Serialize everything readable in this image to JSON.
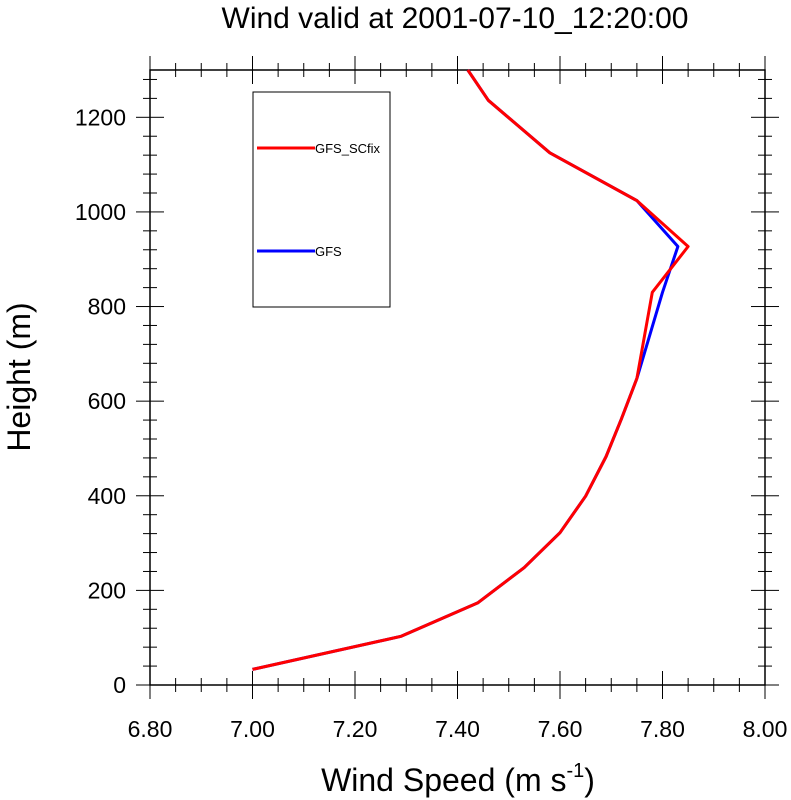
{
  "chart_data": {
    "type": "line",
    "title": "Wind valid at 2001-07-10_12:20:00",
    "xlabel": "Wind Speed (m s",
    "xlabel_sup": "-1",
    "xlabel_close": ")",
    "ylabel": "Height (m)",
    "xlim": [
      6.8,
      8.0
    ],
    "ylim": [
      0,
      1300
    ],
    "x_ticks": [
      6.8,
      7.0,
      7.2,
      7.4,
      7.6,
      7.8,
      8.0
    ],
    "x_tick_labels": [
      "6.80",
      "7.00",
      "7.20",
      "7.40",
      "7.60",
      "7.80",
      "8.00"
    ],
    "y_ticks": [
      0,
      200,
      400,
      600,
      800,
      1000,
      1200
    ],
    "y_tick_labels": [
      "0",
      "200",
      "400",
      "600",
      "800",
      "1000",
      "1200"
    ],
    "grid": false,
    "legend_position": "top-left",
    "series": [
      {
        "name": "GFS",
        "color": "#0000ff",
        "x": [
          7.0,
          7.29,
          7.44,
          7.53,
          7.6,
          7.65,
          7.69,
          7.72,
          7.75,
          7.8,
          7.83,
          7.75,
          7.58,
          7.46,
          7.42
        ],
        "y": [
          33,
          103,
          174,
          248,
          322,
          399,
          483,
          563,
          648,
          830,
          927,
          1024,
          1125,
          1236,
          1300
        ]
      },
      {
        "name": "GFS_SCfix",
        "color": "#ff0000",
        "x": [
          7.0,
          7.29,
          7.44,
          7.53,
          7.6,
          7.65,
          7.69,
          7.72,
          7.75,
          7.78,
          7.85,
          7.75,
          7.58,
          7.46,
          7.42
        ],
        "y": [
          33,
          103,
          174,
          248,
          322,
          399,
          483,
          563,
          648,
          830,
          927,
          1024,
          1125,
          1236,
          1300
        ]
      }
    ],
    "legend_order": [
      "GFS_SCfix",
      "GFS"
    ]
  }
}
